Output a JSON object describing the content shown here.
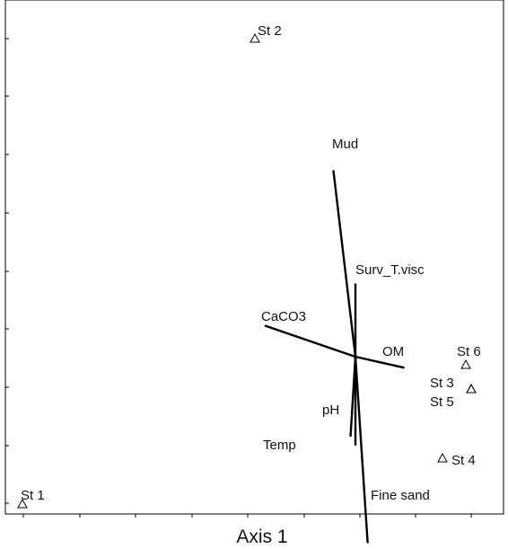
{
  "chart_data": {
    "type": "scatter",
    "title": "",
    "xlabel": "Axis 1",
    "ylabel": "",
    "grid": false,
    "legend": "none",
    "colors": {
      "ink": "#000000",
      "background": "#ffffff"
    },
    "xlim": [
      -10.5,
      10.5
    ],
    "ylim": [
      -6.0,
      16.4
    ],
    "stations": [
      {
        "label": "St 1",
        "x": -10.0,
        "y": -5.5
      },
      {
        "label": "St 2",
        "x": -0.9,
        "y": 15.0
      },
      {
        "label": "St 3",
        "x": 4.5,
        "y": -1.0
      },
      {
        "label": "St 4",
        "x": 3.3,
        "y": -4.2
      },
      {
        "label": "St 5",
        "x": 4.5,
        "y": -1.0
      },
      {
        "label": "St 6",
        "x": 4.3,
        "y": -0.3
      }
    ],
    "vectors": [
      {
        "label": "Mud",
        "x": -0.9,
        "y": 8.4
      },
      {
        "label": "Fine sand",
        "x": 0.5,
        "y": -8.4
      },
      {
        "label": "Surv_T.visc",
        "x": 0.0,
        "y": 3.3
      },
      {
        "label": "CaCO3",
        "x": -3.7,
        "y": 1.4
      },
      {
        "label": "OM",
        "x": 2.0,
        "y": -0.5
      },
      {
        "label": "pH",
        "x": -0.2,
        "y": -3.6
      },
      {
        "label": "Temp",
        "x": 0.0,
        "y": -4.0
      }
    ]
  }
}
